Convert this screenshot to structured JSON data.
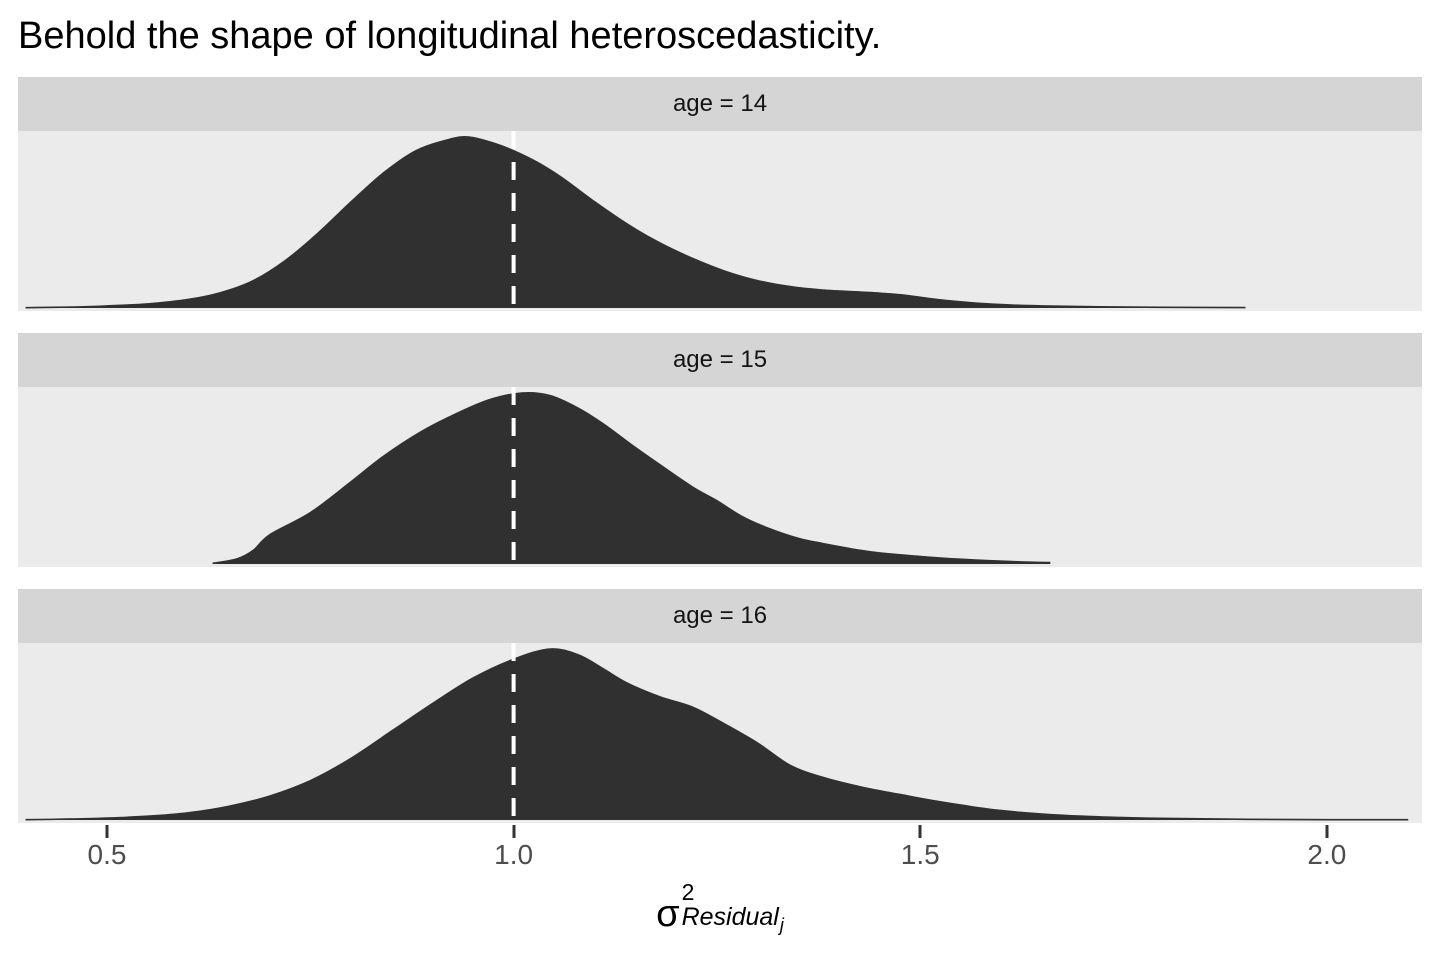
{
  "title": "Behold the shape of longitudinal heteroscedasticity.",
  "colors": {
    "density_fill": "#303030",
    "density_outline": "#303030",
    "panel_background": "#ebebeb",
    "strip_background": "#d5d5d5",
    "strip_text": "#141414",
    "tick_mark": "#333333",
    "tick_label": "#4d4d4d",
    "vline": "#ffffff",
    "page_background": "#ffffff"
  },
  "chart_data": {
    "type": "area",
    "subtype": "faceted-density",
    "title": "Behold the shape of longitudinal heteroscedasticity.",
    "xlabel_parts": {
      "base": "σ",
      "sup": "2",
      "sub_main": "Residual",
      "sub_sub": "j"
    },
    "x_ticks": [
      0.5,
      1.0,
      1.5,
      2.0
    ],
    "x_tick_labels": [
      "0.5",
      "1.0",
      "1.5",
      "2.0"
    ],
    "xlim": [
      0.3906,
      2.117
    ],
    "vline_x": 1.0,
    "vline_style": "dashed white, full panel height",
    "grid": false,
    "legend": false,
    "y_note": "densities normalized per facet, peak = 1.0, drawn at 95% of panel height",
    "facets": [
      {
        "label": "age = 14",
        "points": [
          [
            0.4,
            0.002
          ],
          [
            0.46,
            0.006
          ],
          [
            0.5,
            0.012
          ],
          [
            0.55,
            0.024
          ],
          [
            0.6,
            0.05
          ],
          [
            0.64,
            0.09
          ],
          [
            0.68,
            0.16
          ],
          [
            0.72,
            0.28
          ],
          [
            0.76,
            0.44
          ],
          [
            0.8,
            0.62
          ],
          [
            0.84,
            0.79
          ],
          [
            0.88,
            0.92
          ],
          [
            0.92,
            0.985
          ],
          [
            0.945,
            1.0
          ],
          [
            0.975,
            0.965
          ],
          [
            1.0,
            0.92
          ],
          [
            1.03,
            0.85
          ],
          [
            1.06,
            0.76
          ],
          [
            1.1,
            0.62
          ],
          [
            1.14,
            0.49
          ],
          [
            1.18,
            0.38
          ],
          [
            1.22,
            0.29
          ],
          [
            1.26,
            0.215
          ],
          [
            1.3,
            0.16
          ],
          [
            1.34,
            0.125
          ],
          [
            1.38,
            0.105
          ],
          [
            1.44,
            0.09
          ],
          [
            1.48,
            0.075
          ],
          [
            1.52,
            0.05
          ],
          [
            1.56,
            0.032
          ],
          [
            1.6,
            0.02
          ],
          [
            1.65,
            0.012
          ],
          [
            1.72,
            0.007
          ],
          [
            1.8,
            0.004
          ],
          [
            1.9,
            0.0025
          ]
        ]
      },
      {
        "label": "age = 15",
        "points": [
          [
            0.63,
            0.004
          ],
          [
            0.66,
            0.03
          ],
          [
            0.68,
            0.08
          ],
          [
            0.7,
            0.17
          ],
          [
            0.75,
            0.3
          ],
          [
            0.8,
            0.48
          ],
          [
            0.84,
            0.63
          ],
          [
            0.885,
            0.77
          ],
          [
            0.93,
            0.88
          ],
          [
            0.97,
            0.96
          ],
          [
            1.01,
            1.0
          ],
          [
            1.045,
            0.985
          ],
          [
            1.08,
            0.91
          ],
          [
            1.11,
            0.82
          ],
          [
            1.15,
            0.68
          ],
          [
            1.18,
            0.58
          ],
          [
            1.22,
            0.45
          ],
          [
            1.25,
            0.37
          ],
          [
            1.28,
            0.28
          ],
          [
            1.31,
            0.215
          ],
          [
            1.35,
            0.15
          ],
          [
            1.38,
            0.12
          ],
          [
            1.42,
            0.085
          ],
          [
            1.45,
            0.065
          ],
          [
            1.51,
            0.04
          ],
          [
            1.56,
            0.025
          ],
          [
            1.62,
            0.013
          ],
          [
            1.66,
            0.008
          ]
        ]
      },
      {
        "label": "age = 16",
        "points": [
          [
            0.4,
            0.002
          ],
          [
            0.45,
            0.005
          ],
          [
            0.5,
            0.011
          ],
          [
            0.55,
            0.022
          ],
          [
            0.6,
            0.042
          ],
          [
            0.65,
            0.08
          ],
          [
            0.7,
            0.14
          ],
          [
            0.75,
            0.23
          ],
          [
            0.8,
            0.36
          ],
          [
            0.85,
            0.52
          ],
          [
            0.9,
            0.68
          ],
          [
            0.95,
            0.83
          ],
          [
            1.0,
            0.94
          ],
          [
            1.045,
            1.0
          ],
          [
            1.08,
            0.965
          ],
          [
            1.11,
            0.885
          ],
          [
            1.14,
            0.8
          ],
          [
            1.18,
            0.72
          ],
          [
            1.22,
            0.66
          ],
          [
            1.26,
            0.56
          ],
          [
            1.3,
            0.45
          ],
          [
            1.34,
            0.32
          ],
          [
            1.38,
            0.25
          ],
          [
            1.43,
            0.19
          ],
          [
            1.48,
            0.145
          ],
          [
            1.52,
            0.11
          ],
          [
            1.56,
            0.08
          ],
          [
            1.6,
            0.055
          ],
          [
            1.65,
            0.035
          ],
          [
            1.7,
            0.022
          ],
          [
            1.76,
            0.013
          ],
          [
            1.82,
            0.008
          ],
          [
            1.9,
            0.004
          ],
          [
            2.0,
            0.002
          ],
          [
            2.1,
            0.0015
          ]
        ]
      }
    ]
  }
}
